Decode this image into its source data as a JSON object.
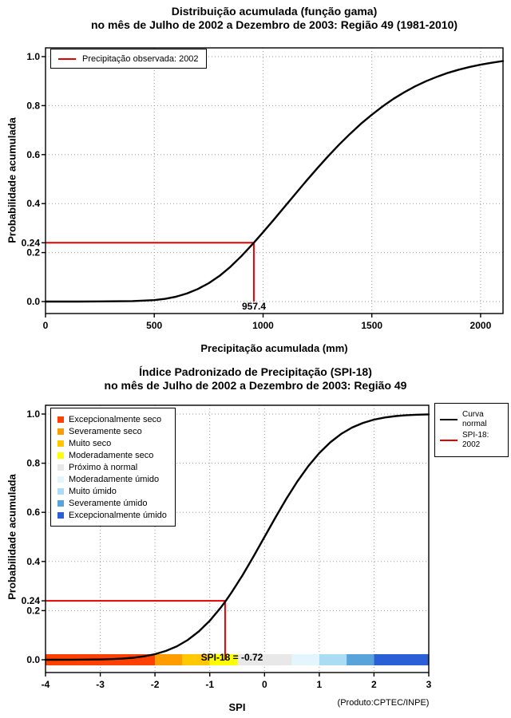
{
  "colors": {
    "background": "#ffffff",
    "curve": "#000000",
    "reference_red": "#e00000",
    "grid": "#9a9a9a"
  },
  "chart1": {
    "title1": "Distribuição acumulada (função gama)",
    "title2": "no mês de Julho de 2002 a Dezembro de 2003: Região 49 (1981-2010)",
    "xlabel": "Precipitação acumulada (mm)",
    "ylabel": "Probabilidade acumulada",
    "legend_label": "Precipitação observada: 2002",
    "ref_x_label": "957.4",
    "ref_y_label": "0.24"
  },
  "chart2": {
    "title1": "Índice Padronizado de Precipitação (SPI-18)",
    "title2": "no mês de Julho de 2002 a Dezembro de 2003: Região 49",
    "xlabel": "SPI",
    "ylabel": "Probabilidade acumulada",
    "ref_y_label": "0.24",
    "spi_value_label": "SPI-18 = -0.72",
    "legend_curve_line1": "Curva",
    "legend_curve_line2": "normal",
    "legend_spi": "SPI-18: 2002",
    "product": "(Produto:CPTEC/INPE)"
  },
  "chart_data": [
    {
      "type": "line",
      "title": "Distribuição acumulada (função gama)",
      "subtitle": "no mês de Julho de 2002 a Dezembro de 2003: Região 49 (1981-2010)",
      "xlabel": "Precipitação acumulada (mm)",
      "ylabel": "Probabilidade acumulada",
      "xlim": [
        0,
        2103
      ],
      "ylim": [
        -0.05,
        1.05
      ],
      "xticks": [
        0,
        500,
        1000,
        1500,
        2000
      ],
      "yticks": [
        0,
        0.2,
        0.4,
        0.6,
        0.8,
        1
      ],
      "grid": true,
      "legend_position": "top-left",
      "legend": [
        {
          "name": "Precipitação observada: 2002",
          "color": "#e00000"
        }
      ],
      "reference": {
        "x": 957.4,
        "y": 0.24
      },
      "series": [
        {
          "name": "Distribuição gama acumulada",
          "color": "#000000",
          "points": [
            [
              0,
              0
            ],
            [
              150,
              0
            ],
            [
              300,
              0.001
            ],
            [
              400,
              0.002
            ],
            [
              450,
              0.004
            ],
            [
              500,
              0.006
            ],
            [
              550,
              0.011
            ],
            [
              600,
              0.02
            ],
            [
              650,
              0.033
            ],
            [
              700,
              0.051
            ],
            [
              750,
              0.075
            ],
            [
              800,
              0.105
            ],
            [
              850,
              0.142
            ],
            [
              900,
              0.185
            ],
            [
              957.4,
              0.24
            ],
            [
              1000,
              0.283
            ],
            [
              1050,
              0.335
            ],
            [
              1100,
              0.388
            ],
            [
              1150,
              0.441
            ],
            [
              1200,
              0.494
            ],
            [
              1250,
              0.545
            ],
            [
              1300,
              0.594
            ],
            [
              1350,
              0.641
            ],
            [
              1400,
              0.685
            ],
            [
              1450,
              0.726
            ],
            [
              1500,
              0.763
            ],
            [
              1550,
              0.797
            ],
            [
              1600,
              0.828
            ],
            [
              1650,
              0.855
            ],
            [
              1700,
              0.879
            ],
            [
              1750,
              0.9
            ],
            [
              1800,
              0.918
            ],
            [
              1850,
              0.934
            ],
            [
              1900,
              0.947
            ],
            [
              1950,
              0.958
            ],
            [
              2000,
              0.967
            ],
            [
              2050,
              0.975
            ],
            [
              2103,
              0.982
            ]
          ]
        }
      ]
    },
    {
      "type": "line",
      "title": "Índice Padronizado de Precipitação (SPI-18)",
      "subtitle": "no mês de Julho de 2002 a Dezembro de 2003: Região 49",
      "xlabel": "SPI",
      "ylabel": "Probabilidade acumulada",
      "xlim": [
        -4,
        3
      ],
      "ylim": [
        -0.05,
        1.05
      ],
      "xticks": [
        -4,
        -3,
        -2,
        -1,
        0,
        1,
        2,
        3
      ],
      "yticks": [
        0,
        0.2,
        0.4,
        0.6,
        0.8,
        1
      ],
      "grid": true,
      "legend_position": "top-right",
      "legend": [
        {
          "name": "Curva normal",
          "color": "#000000"
        },
        {
          "name": "SPI-18: 2002",
          "color": "#e00000"
        }
      ],
      "reference": {
        "x": -0.72,
        "y": 0.24,
        "label": "SPI-18 = -0.72"
      },
      "series": [
        {
          "name": "Curva normal",
          "color": "#000000",
          "points": [
            [
              -4,
              0
            ],
            [
              -3.5,
              0.0002
            ],
            [
              -3,
              0.0013
            ],
            [
              -2.8,
              0.0026
            ],
            [
              -2.6,
              0.0047
            ],
            [
              -2.4,
              0.0082
            ],
            [
              -2.2,
              0.0139
            ],
            [
              -2,
              0.0228
            ],
            [
              -1.8,
              0.0359
            ],
            [
              -1.6,
              0.0548
            ],
            [
              -1.4,
              0.0808
            ],
            [
              -1.2,
              0.1151
            ],
            [
              -1,
              0.1587
            ],
            [
              -0.8,
              0.2119
            ],
            [
              -0.72,
              0.2358
            ],
            [
              -0.6,
              0.2743
            ],
            [
              -0.4,
              0.3446
            ],
            [
              -0.2,
              0.4207
            ],
            [
              0,
              0.5
            ],
            [
              0.2,
              0.5793
            ],
            [
              0.4,
              0.6554
            ],
            [
              0.6,
              0.7257
            ],
            [
              0.8,
              0.7881
            ],
            [
              1,
              0.8413
            ],
            [
              1.2,
              0.8849
            ],
            [
              1.4,
              0.9192
            ],
            [
              1.6,
              0.9452
            ],
            [
              1.8,
              0.9641
            ],
            [
              2,
              0.9772
            ],
            [
              2.2,
              0.9861
            ],
            [
              2.4,
              0.9918
            ],
            [
              2.6,
              0.9953
            ],
            [
              2.8,
              0.9974
            ],
            [
              3,
              0.9987
            ]
          ]
        }
      ],
      "colorbar": [
        {
          "label": "Excepcionalmente seco",
          "color": "#ff4000",
          "from": -4,
          "to": -2
        },
        {
          "label": "Severamente seco",
          "color": "#ff9c00",
          "from": -2,
          "to": -1.5
        },
        {
          "label": "Muito seco",
          "color": "#ffc800",
          "from": -1.5,
          "to": -1
        },
        {
          "label": "Moderadamente seco",
          "color": "#ffff00",
          "from": -1,
          "to": -0.5
        },
        {
          "label": "Próximo à normal",
          "color": "#e8e8e8",
          "from": -0.5,
          "to": 0.5
        },
        {
          "label": "Moderadamente úmido",
          "color": "#e4f6fd",
          "from": 0.5,
          "to": 1
        },
        {
          "label": "Muito úmido",
          "color": "#aadcf4",
          "from": 1,
          "to": 1.5
        },
        {
          "label": "Severamente úmido",
          "color": "#58a4da",
          "from": 1.5,
          "to": 2
        },
        {
          "label": "Excepcionalmente úmido",
          "color": "#2b5fd6",
          "from": 2,
          "to": 3
        }
      ]
    }
  ]
}
